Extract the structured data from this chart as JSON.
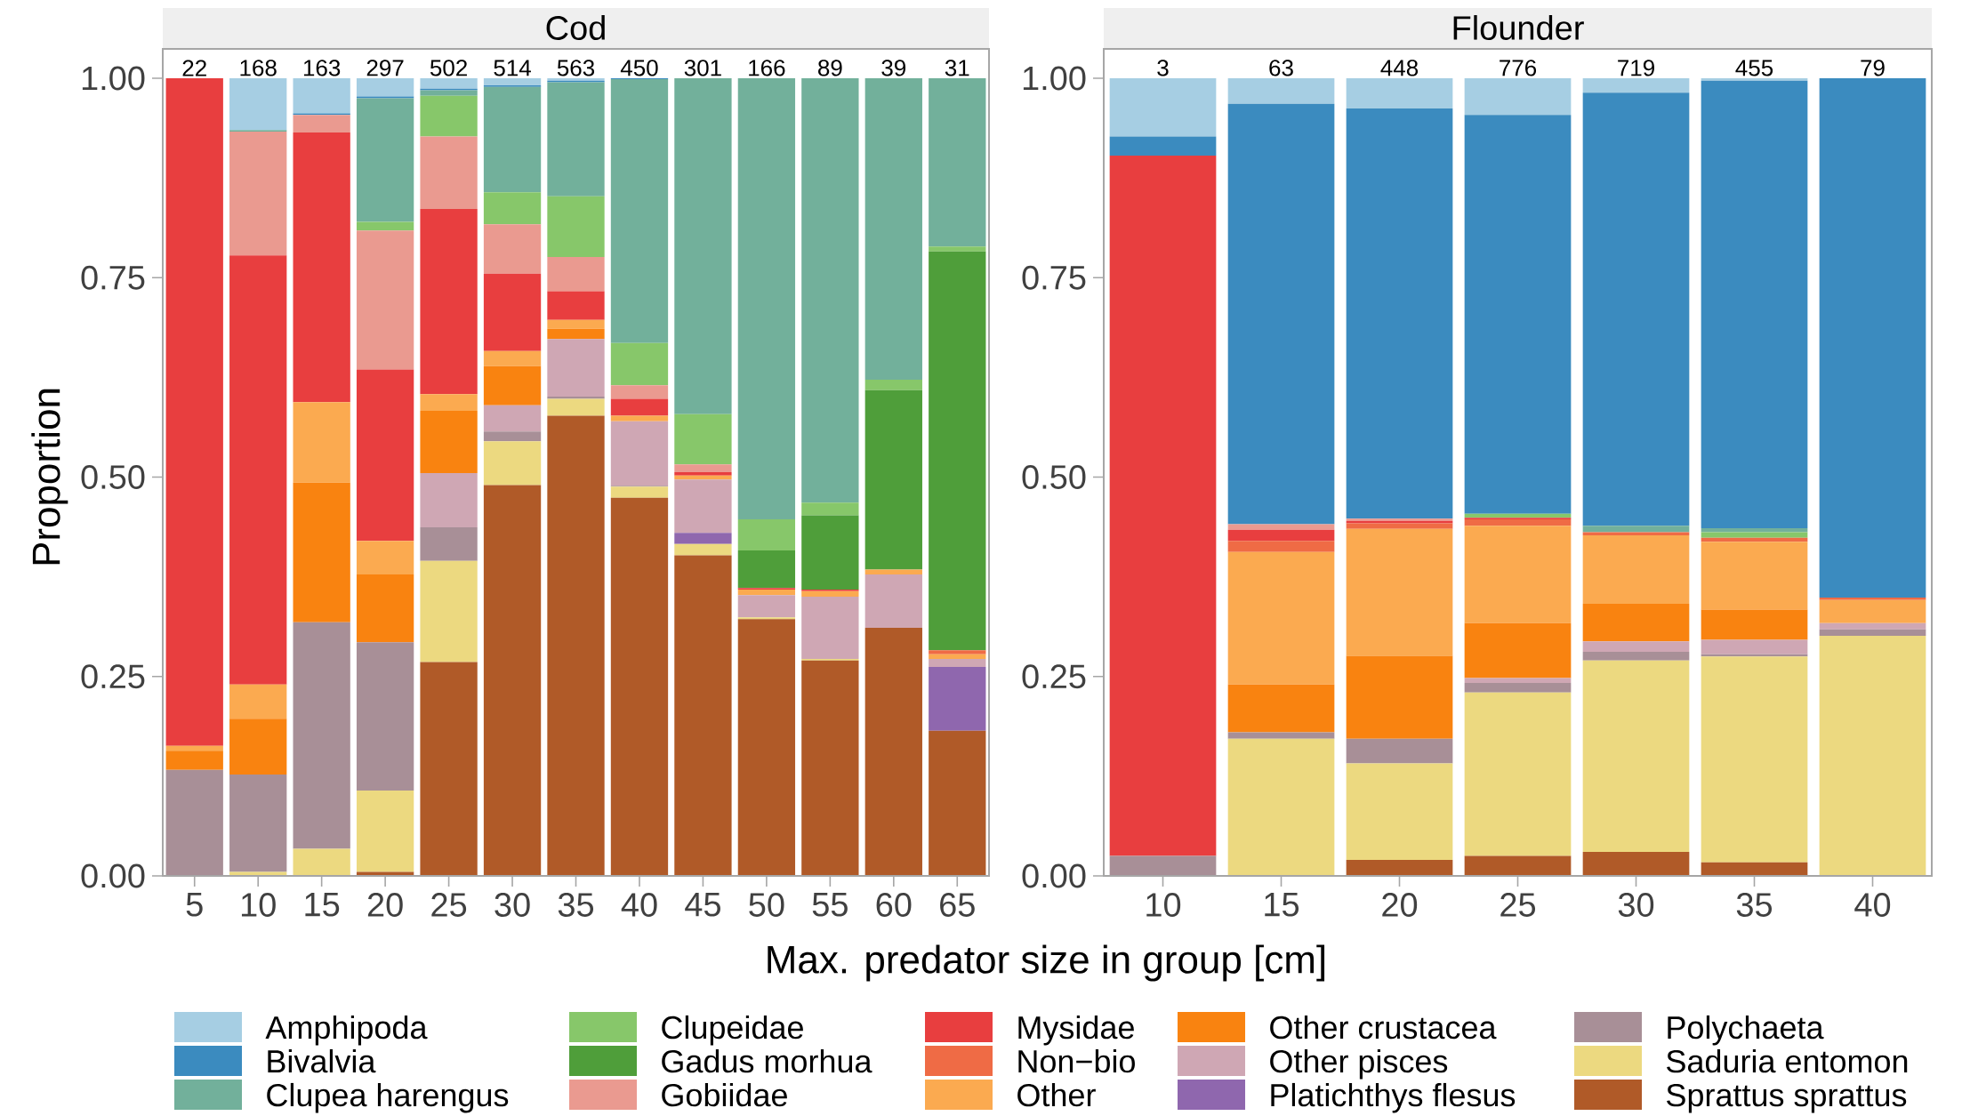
{
  "chart_data": [
    {
      "type": "bar",
      "stacked": true,
      "title": "Cod",
      "xlabel": "Max. predator size in group [cm]",
      "ylabel": "Proportion",
      "legend": "bottom",
      "categories": [
        "5",
        "10",
        "15",
        "20",
        "25",
        "30",
        "35",
        "40",
        "45",
        "50",
        "55",
        "60",
        "65"
      ],
      "ylim": [
        0,
        1
      ],
      "yticks": [
        {
          "value": 0,
          "label": "0.00"
        },
        {
          "value": 0.25,
          "label": "0.25"
        },
        {
          "value": 0.5,
          "label": "0.50"
        },
        {
          "value": 0.75,
          "label": "0.75"
        },
        {
          "value": 1,
          "label": "1.00"
        }
      ],
      "series": [
        {
          "name": "Sprattus sprattus",
          "color": "#b05a28",
          "values": [
            0,
            0,
            0,
            0.005,
            0.268,
            0.49,
            0.577,
            0.474,
            0.402,
            0.322,
            0.27,
            0.311,
            0.182
          ]
        },
        {
          "name": "Saduria entomon",
          "color": "#ecd980",
          "values": [
            0,
            0.005,
            0.034,
            0.102,
            0.127,
            0.055,
            0.021,
            0.014,
            0.014,
            0.002,
            0.002,
            0,
            0
          ]
        },
        {
          "name": "Polychaeta",
          "color": "#a88f97",
          "values": [
            0.133,
            0.122,
            0.284,
            0.186,
            0.042,
            0.012,
            0.003,
            0.001,
            0,
            0,
            0,
            0,
            0
          ]
        },
        {
          "name": "Platichthys flesus",
          "color": "#8f67ae",
          "values": [
            0,
            0,
            0,
            0,
            0,
            0,
            0,
            0,
            0.014,
            0,
            0,
            0,
            0.08
          ]
        },
        {
          "name": "Other pisces",
          "color": "#cfa7b4",
          "values": [
            0,
            0,
            0,
            0,
            0.068,
            0.033,
            0.072,
            0.081,
            0.067,
            0.028,
            0.078,
            0.067,
            0.01
          ]
        },
        {
          "name": "Other crustacea",
          "color": "#f98310",
          "values": [
            0.024,
            0.07,
            0.175,
            0.085,
            0.078,
            0.049,
            0.013,
            0,
            0,
            0,
            0,
            0,
            0
          ]
        },
        {
          "name": "Other",
          "color": "#fbaa50",
          "values": [
            0.006,
            0.043,
            0.101,
            0.042,
            0.021,
            0.019,
            0.011,
            0.007,
            0.005,
            0.007,
            0.007,
            0.006,
            0.006
          ]
        },
        {
          "name": "Non−bio",
          "color": "#ef6b45",
          "values": [
            0,
            0,
            0,
            0,
            0,
            0,
            0,
            0,
            0,
            0,
            0,
            0,
            0.005
          ]
        },
        {
          "name": "Mysidae",
          "color": "#e83e3f",
          "values": [
            0.837,
            0.538,
            0.338,
            0.215,
            0.232,
            0.097,
            0.036,
            0.021,
            0.004,
            0.002,
            0.002,
            0,
            0
          ]
        },
        {
          "name": "Gobiidae",
          "color": "#ea9a90",
          "values": [
            0,
            0.155,
            0.022,
            0.174,
            0.091,
            0.062,
            0.043,
            0.017,
            0.01,
            0,
            0,
            0,
            0
          ]
        },
        {
          "name": "Gadus morhua",
          "color": "#4f9e3a",
          "values": [
            0,
            0,
            0,
            0,
            0,
            0,
            0,
            0,
            0,
            0.047,
            0.093,
            0.225,
            0.5
          ]
        },
        {
          "name": "Clupeidae",
          "color": "#87c76a",
          "values": [
            0,
            0,
            0,
            0.011,
            0.051,
            0.04,
            0.076,
            0.053,
            0.063,
            0.039,
            0.016,
            0.013,
            0.006
          ]
        },
        {
          "name": "Clupea harengus",
          "color": "#72b09b",
          "values": [
            0,
            0.002,
            0,
            0.155,
            0.007,
            0.132,
            0.143,
            0.331,
            0.421,
            0.553,
            0.532,
            0.378,
            0.211
          ]
        },
        {
          "name": "Bivalvia",
          "color": "#3b8bbf",
          "values": [
            0,
            0,
            0.002,
            0.002,
            0.002,
            0.002,
            0.002,
            0.001,
            0,
            0,
            0,
            0,
            0
          ]
        },
        {
          "name": "Amphipoda",
          "color": "#a6cee3",
          "values": [
            0,
            0.065,
            0.044,
            0.023,
            0.013,
            0.009,
            0.003,
            0,
            0,
            0,
            0,
            0,
            0
          ]
        }
      ],
      "annotations": [
        "22",
        "168",
        "163",
        "297",
        "502",
        "514",
        "563",
        "450",
        "301",
        "166",
        "89",
        "39",
        "31"
      ]
    },
    {
      "type": "bar",
      "stacked": true,
      "title": "Flounder",
      "categories": [
        "10",
        "15",
        "20",
        "25",
        "30",
        "35",
        "40"
      ],
      "ylim": [
        0,
        1
      ],
      "yticks": [
        {
          "value": 0,
          "label": "0.00"
        },
        {
          "value": 0.25,
          "label": "0.25"
        },
        {
          "value": 0.5,
          "label": "0.50"
        },
        {
          "value": 0.75,
          "label": "0.75"
        },
        {
          "value": 1,
          "label": "1.00"
        }
      ],
      "series": [
        {
          "color": "#b05a28",
          "values": [
            0,
            0,
            0.02,
            0.025,
            0.03,
            0.017,
            0
          ]
        },
        {
          "color": "#ecd980",
          "values": [
            0,
            0.172,
            0.121,
            0.205,
            0.24,
            0.258,
            0.301
          ]
        },
        {
          "color": "#a88f97",
          "values": [
            0.025,
            0.008,
            0.031,
            0.012,
            0.011,
            0.003,
            0.008
          ]
        },
        {
          "color": "#cfa7b4",
          "values": [
            0,
            0,
            0,
            0.006,
            0.013,
            0.018,
            0.008
          ]
        },
        {
          "color": "#f98310",
          "values": [
            0,
            0.06,
            0.104,
            0.069,
            0.047,
            0.038,
            0
          ]
        },
        {
          "color": "#fbaa50",
          "values": [
            0,
            0.166,
            0.159,
            0.122,
            0.086,
            0.085,
            0.029
          ]
        },
        {
          "color": "#ef6b45",
          "values": [
            0,
            0.014,
            0.007,
            0.008,
            0.004,
            0.005,
            0.003
          ]
        },
        {
          "color": "#e83e3f",
          "values": [
            0.878,
            0.014,
            0.003,
            0.002,
            0,
            0,
            0
          ]
        },
        {
          "color": "#ea9a90",
          "values": [
            0,
            0.007,
            0.003,
            0,
            0,
            0,
            0
          ]
        },
        {
          "color": "#87c76a",
          "values": [
            0,
            0,
            0,
            0.005,
            0,
            0.007,
            0
          ]
        },
        {
          "color": "#72b09b",
          "values": [
            0,
            0,
            0,
            0,
            0.008,
            0.005,
            0
          ]
        },
        {
          "color": "#3b8bbf",
          "values": [
            0.024,
            0.527,
            0.514,
            0.5,
            0.543,
            0.561,
            0.651
          ]
        },
        {
          "color": "#a6cee3",
          "values": [
            0.073,
            0.032,
            0.038,
            0.046,
            0.018,
            0.003,
            0
          ]
        }
      ],
      "annotations": [
        "3",
        "63",
        "448",
        "776",
        "719",
        "455",
        "79"
      ]
    }
  ]
}
